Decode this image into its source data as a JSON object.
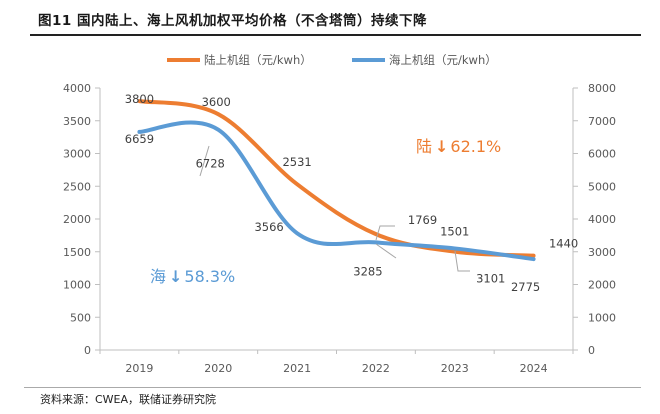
{
  "header": {
    "title": "图11 国内陆上、海上风机加权平均价格（不含塔筒）持续下降"
  },
  "footer": {
    "source": "资料来源：CWEA，联储证券研究院"
  },
  "chart_data": {
    "type": "line",
    "title": "图11 国内陆上、海上风机加权平均价格（不含塔筒）持续下降",
    "xlabel": "",
    "ylabel": "",
    "x": [
      "2019",
      "2020",
      "2021",
      "2022",
      "2023",
      "2024"
    ],
    "series": [
      {
        "name": "陆上机组（元/kwh）",
        "axis": "left",
        "color": "#ED7D31",
        "values": [
          3800,
          3600,
          2531,
          1769,
          1501,
          1440
        ],
        "labels": [
          "3800",
          "3600",
          "2531",
          "1769",
          "1501",
          "1440"
        ]
      },
      {
        "name": "海上机组（元/kwh）",
        "axis": "right",
        "color": "#5B9BD5",
        "values": [
          6659,
          6728,
          3566,
          3285,
          3101,
          2775
        ],
        "labels": [
          "6659",
          "6728",
          "3566",
          "3285",
          "3101",
          "2775"
        ]
      }
    ],
    "y_left": {
      "range": [
        0,
        4000
      ],
      "ticks": [
        "0",
        "500",
        "1000",
        "1500",
        "2000",
        "2500",
        "3000",
        "3500",
        "4000"
      ]
    },
    "y_right": {
      "range": [
        0,
        8000
      ],
      "ticks": [
        "0",
        "1000",
        "2000",
        "3000",
        "4000",
        "5000",
        "6000",
        "7000",
        "8000"
      ]
    },
    "grid": false,
    "legend": "top-center",
    "annotations": [
      {
        "text_prefix": "陆",
        "arrow": "↓",
        "text_value": "62.1%",
        "color": "#ED7D31",
        "series": "陆上机组（元/kwh）"
      },
      {
        "text_prefix": "海",
        "arrow": "↓",
        "text_value": "58.3%",
        "color": "#5B9BD5",
        "series": "海上机组（元/kwh）"
      }
    ]
  }
}
